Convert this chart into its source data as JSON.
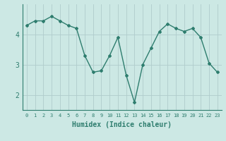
{
  "x": [
    0,
    1,
    2,
    3,
    4,
    5,
    6,
    7,
    8,
    9,
    10,
    11,
    12,
    13,
    14,
    15,
    16,
    17,
    18,
    19,
    20,
    21,
    22,
    23
  ],
  "y": [
    4.3,
    4.45,
    4.45,
    4.6,
    4.45,
    4.3,
    4.2,
    3.3,
    2.75,
    2.8,
    3.3,
    3.9,
    2.65,
    1.75,
    3.0,
    3.55,
    4.1,
    4.35,
    4.2,
    4.1,
    4.2,
    3.9,
    3.05,
    2.75
  ],
  "line_color": "#2e7d6e",
  "marker": "D",
  "marker_size": 2,
  "linewidth": 1.0,
  "bg_color": "#cce8e4",
  "grid_color": "#b0cccc",
  "tick_color": "#2e7d6e",
  "label_color": "#2e7d6e",
  "xlabel": "Humidex (Indice chaleur)",
  "xlabel_fontsize": 7,
  "ytick_fontsize": 7,
  "xtick_fontsize": 5,
  "yticks": [
    2,
    3,
    4
  ],
  "xticks": [
    0,
    1,
    2,
    3,
    4,
    5,
    6,
    7,
    8,
    9,
    10,
    11,
    12,
    13,
    14,
    15,
    16,
    17,
    18,
    19,
    20,
    21,
    22,
    23
  ],
  "ylim": [
    1.5,
    5.0
  ],
  "xlim": [
    -0.5,
    23.5
  ]
}
